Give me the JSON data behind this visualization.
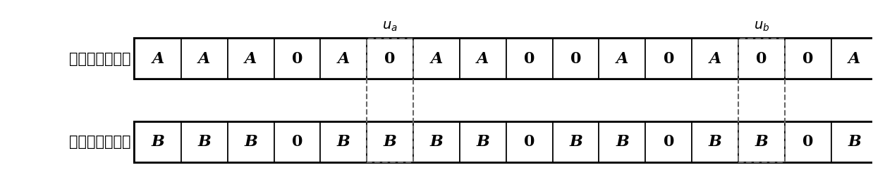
{
  "row1_label": "第二待译码序列",
  "row2_label": "第一待译码序列",
  "row1_values": [
    "A",
    "A",
    "A",
    "0",
    "A",
    "0",
    "A",
    "A",
    "0",
    "0",
    "A",
    "0",
    "A",
    "0",
    "0",
    "A"
  ],
  "row2_values": [
    "B",
    "B",
    "B",
    "0",
    "B",
    "B",
    "B",
    "B",
    "0",
    "B",
    "B",
    "0",
    "B",
    "B",
    "0",
    "B"
  ],
  "ua_label": "$u_a$",
  "ub_label": "$u_b$",
  "ua_col": 5,
  "ub_col": 13,
  "n_cells": 16,
  "bg_color": "#ffffff",
  "text_color": "#000000",
  "border_color": "#000000",
  "dashed_color": "#666666"
}
